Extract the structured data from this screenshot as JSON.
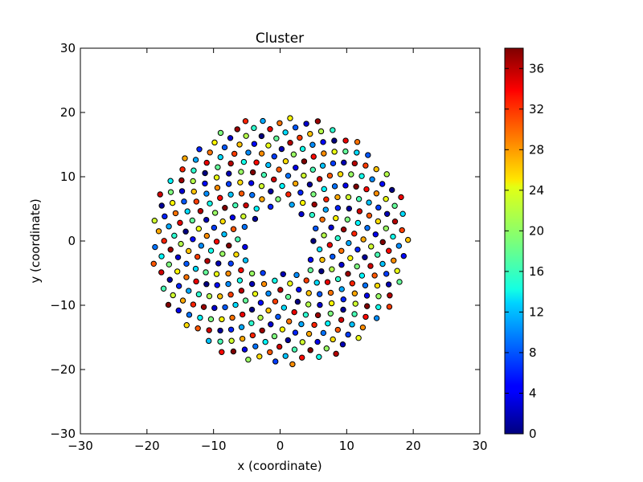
{
  "chart_data": {
    "type": "scatter",
    "title": "Cluster",
    "xlabel": "x (coordinate)",
    "ylabel": "y (coordinate)",
    "xlim": [
      -30,
      30
    ],
    "ylim": [
      -30,
      30
    ],
    "xticks": [
      -30,
      -20,
      -10,
      0,
      10,
      20,
      30
    ],
    "yticks": [
      -30,
      -20,
      -10,
      0,
      10,
      20,
      30
    ],
    "xtick_labels": [
      "−30",
      "−20",
      "−10",
      "0",
      "10",
      "20",
      "30"
    ],
    "ytick_labels": [
      "−30",
      "−20",
      "−10",
      "0",
      "10",
      "20",
      "30"
    ],
    "grid": false,
    "colorbar": {
      "colormap": "jet",
      "range": [
        0,
        38
      ],
      "ticks": [
        0,
        4,
        8,
        12,
        16,
        20,
        24,
        28,
        32,
        36
      ],
      "tick_labels": [
        "0",
        "4",
        "8",
        "12",
        "16",
        "20",
        "24",
        "28",
        "32",
        "36"
      ]
    },
    "marker": {
      "shape": "circle",
      "edge_color": "#000000"
    },
    "spiral": {
      "description_values": "points laid out on a phyllotaxis spiral; value = index mod 39",
      "point_count": 390,
      "inner_radius": 5,
      "outer_radius": 19.5,
      "golden_angle_deg": 137.508,
      "value_modulo": 39,
      "rotation_deg": 0
    }
  }
}
